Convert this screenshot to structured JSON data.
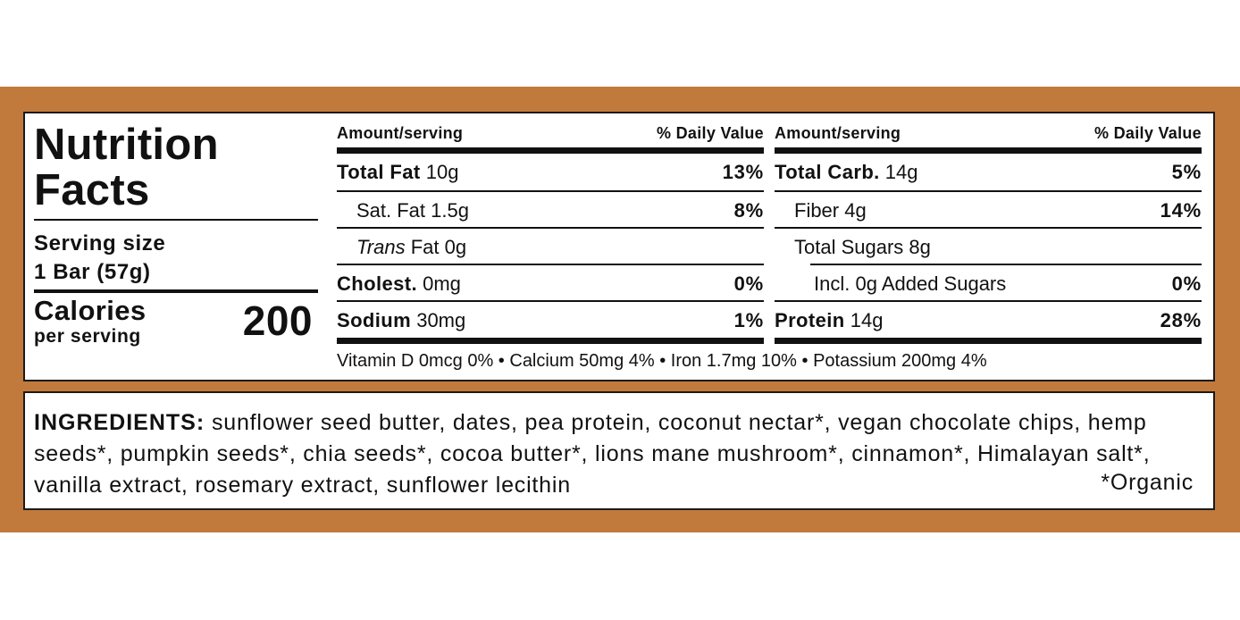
{
  "label": {
    "title_line1": "Nutrition",
    "title_line2": "Facts",
    "serving_size_label": "Serving size",
    "serving_size_value": "1 Bar (57g)",
    "calories_label": "Calories",
    "calories_sublabel": "per serving",
    "calories_value": "200",
    "column_headers": {
      "amount": "Amount/serving",
      "daily_value": "% Daily Value"
    },
    "left_rows": [
      {
        "name": "Total Fat",
        "amount": "10g",
        "dv": "13%"
      },
      {
        "name": "Sat. Fat",
        "amount": "1.5g",
        "dv": "8%"
      },
      {
        "name": "Trans",
        "amount": "Fat 0g",
        "dv": ""
      },
      {
        "name": "Cholest.",
        "amount": "0mg",
        "dv": "0%"
      },
      {
        "name": "Sodium",
        "amount": "30mg",
        "dv": "1%"
      }
    ],
    "right_rows": [
      {
        "name": "Total Carb.",
        "amount": "14g",
        "dv": "5%"
      },
      {
        "name": "Fiber",
        "amount": "4g",
        "dv": "14%"
      },
      {
        "name": "Total Sugars",
        "amount": "8g",
        "dv": ""
      },
      {
        "name": "Incl. 0g Added Sugars",
        "amount": "",
        "dv": "0%"
      },
      {
        "name": "Protein",
        "amount": "14g",
        "dv": "28%"
      }
    ],
    "vitamins": "Vitamin D 0mcg 0% • Calcium 50mg 4% • Iron 1.7mg 10% • Potassium 200mg 4%"
  },
  "ingredients": {
    "heading": "INGREDIENTS:",
    "text": "sunflower seed butter, dates, pea protein, coconut nectar*, vegan chocolate chips, hemp seeds*, pumpkin seeds*, chia seeds*, cocoa butter*, lions mane mushroom*, cinnamon*, Himalayan salt*, vanilla extract, rosemary extract, sunflower lecithin",
    "footnote": "*Organic"
  },
  "colors": {
    "band": "#c17a3c",
    "ink": "#111111",
    "panel": "#ffffff"
  }
}
